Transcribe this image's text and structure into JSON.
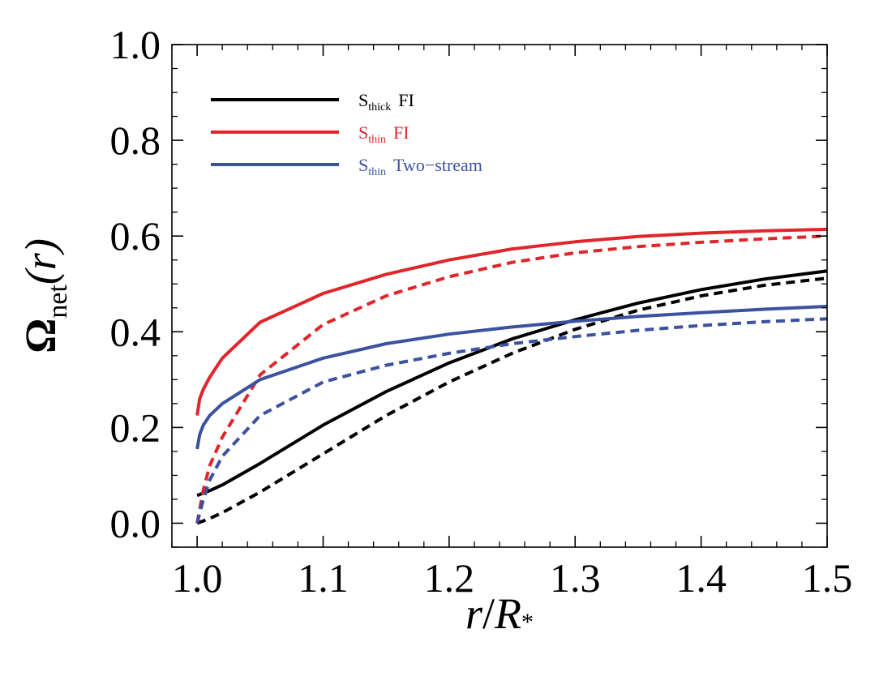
{
  "chart_data": {
    "type": "line",
    "title": "",
    "xlabel": {
      "base": "r",
      "sep": "/",
      "R": "R",
      "sub": "*"
    },
    "ylabel": {
      "symbol": "Ω",
      "sub": "net",
      "arg": "(r)"
    },
    "xlim": [
      0.98,
      1.5
    ],
    "ylim": [
      -0.05,
      1.0
    ],
    "xticks": [
      1.0,
      1.1,
      1.2,
      1.3,
      1.4,
      1.5
    ],
    "xtick_labels": [
      "1.0",
      "1.1",
      "1.2",
      "1.3",
      "1.4",
      "1.5"
    ],
    "yticks": [
      0.0,
      0.2,
      0.4,
      0.6,
      0.8,
      1.0
    ],
    "ytick_labels": [
      "0.0",
      "0.2",
      "0.4",
      "0.6",
      "0.8",
      "1.0"
    ],
    "grid": false,
    "legend_position": "top-left",
    "legend": [
      {
        "main": "S",
        "sub": "thick",
        "rest": "FI",
        "color": "#000000"
      },
      {
        "main": "S",
        "sub": "thin",
        "rest": "FI",
        "color": "#e0262b"
      },
      {
        "main": "S",
        "sub": "thin",
        "rest": "Two−stream",
        "color": "#3a52a0"
      }
    ],
    "series": [
      {
        "color": "#000000",
        "style": "solid",
        "x": [
          1.0,
          1.01,
          1.02,
          1.05,
          1.1,
          1.15,
          1.2,
          1.25,
          1.3,
          1.35,
          1.4,
          1.45,
          1.5
        ],
        "y": [
          0.058,
          0.068,
          0.08,
          0.125,
          0.205,
          0.275,
          0.335,
          0.385,
          0.425,
          0.46,
          0.488,
          0.51,
          0.527
        ]
      },
      {
        "color": "#000000",
        "style": "dashed",
        "x": [
          1.0,
          1.01,
          1.02,
          1.05,
          1.1,
          1.15,
          1.2,
          1.25,
          1.3,
          1.35,
          1.4,
          1.45,
          1.5
        ],
        "y": [
          0.0,
          0.01,
          0.022,
          0.065,
          0.145,
          0.225,
          0.295,
          0.355,
          0.405,
          0.445,
          0.475,
          0.497,
          0.512
        ]
      },
      {
        "color": "#e0262b",
        "style": "solid",
        "x": [
          1.0,
          1.002,
          1.005,
          1.01,
          1.02,
          1.05,
          1.1,
          1.15,
          1.2,
          1.25,
          1.3,
          1.35,
          1.4,
          1.45,
          1.5
        ],
        "y": [
          0.225,
          0.26,
          0.28,
          0.305,
          0.345,
          0.42,
          0.48,
          0.52,
          0.55,
          0.573,
          0.588,
          0.599,
          0.606,
          0.611,
          0.614
        ]
      },
      {
        "color": "#e0262b",
        "style": "dashed",
        "x": [
          1.0,
          1.005,
          1.01,
          1.02,
          1.05,
          1.1,
          1.15,
          1.2,
          1.25,
          1.3,
          1.35,
          1.4,
          1.45,
          1.5
        ],
        "y": [
          0.0,
          0.07,
          0.12,
          0.18,
          0.31,
          0.415,
          0.475,
          0.515,
          0.545,
          0.565,
          0.578,
          0.587,
          0.594,
          0.6
        ]
      },
      {
        "color": "#3a52a0",
        "style": "solid",
        "x": [
          1.0,
          1.002,
          1.005,
          1.01,
          1.02,
          1.05,
          1.1,
          1.15,
          1.2,
          1.25,
          1.3,
          1.35,
          1.4,
          1.45,
          1.5
        ],
        "y": [
          0.155,
          0.185,
          0.205,
          0.225,
          0.25,
          0.3,
          0.345,
          0.375,
          0.395,
          0.41,
          0.422,
          0.432,
          0.44,
          0.447,
          0.453
        ]
      },
      {
        "color": "#3a52a0",
        "style": "dashed",
        "x": [
          1.0,
          1.005,
          1.01,
          1.02,
          1.05,
          1.1,
          1.15,
          1.2,
          1.25,
          1.3,
          1.35,
          1.4,
          1.45,
          1.5
        ],
        "y": [
          0.0,
          0.05,
          0.09,
          0.14,
          0.225,
          0.295,
          0.33,
          0.355,
          0.375,
          0.39,
          0.403,
          0.413,
          0.421,
          0.427
        ]
      }
    ]
  }
}
